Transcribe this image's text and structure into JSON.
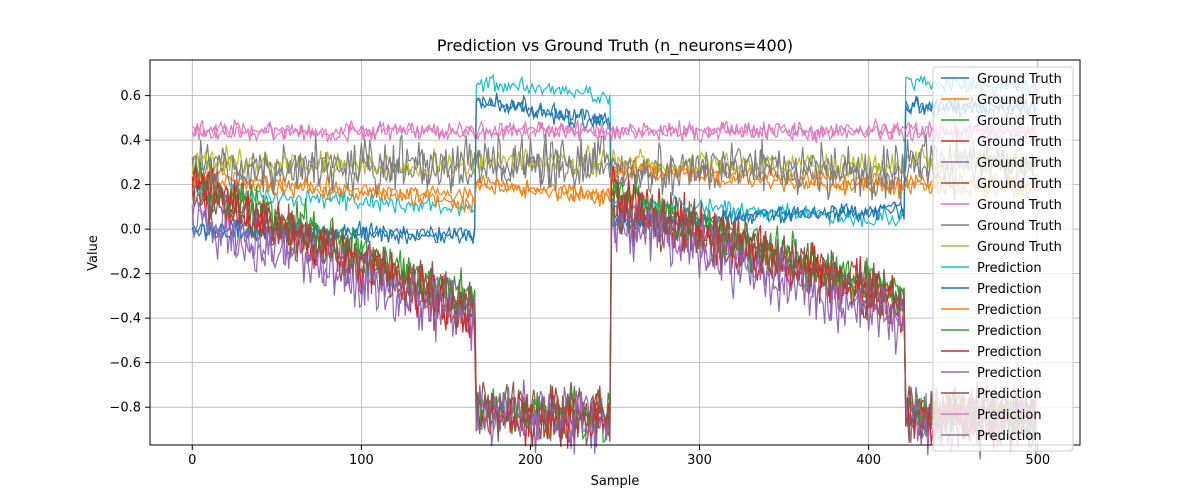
{
  "chart_data": {
    "type": "line",
    "title": "Prediction vs Ground Truth (n_neurons=400)",
    "xlabel": "Sample",
    "ylabel": "Value",
    "xlim": [
      -25,
      525
    ],
    "ylim": [
      -0.97,
      0.76
    ],
    "xticks": [
      0,
      100,
      200,
      300,
      400,
      500
    ],
    "yticks": [
      -0.8,
      -0.6,
      -0.4,
      -0.2,
      0.0,
      0.2,
      0.4,
      0.6
    ],
    "ytick_labels": [
      "−0.8",
      "−0.6",
      "−0.4",
      "−0.2",
      "0.0",
      "0.2",
      "0.4",
      "0.6"
    ],
    "grid": true,
    "legend_position": "upper right",
    "n_points": 500,
    "segments": {
      "boundaries": [
        0,
        168,
        248,
        422,
        500
      ],
      "description": "sample ranges where signal levels change"
    },
    "series": [
      {
        "name": "Ground Truth",
        "color": "#1f77b4",
        "levels": [
          0.0,
          0.58,
          0.03,
          0.55
        ],
        "trend": [
          -0.03,
          -0.1,
          0.06,
          0.0
        ],
        "noise": 0.02
      },
      {
        "name": "Ground Truth",
        "color": "#ff7f0e",
        "levels": [
          0.24,
          0.2,
          0.28,
          0.22
        ],
        "trend": [
          -0.1,
          -0.05,
          -0.08,
          -0.02
        ],
        "noise": 0.02
      },
      {
        "name": "Ground Truth",
        "color": "#2ca02c",
        "levels": [
          0.22,
          -0.82,
          0.15,
          -0.83
        ],
        "trend": [
          -0.55,
          -0.03,
          -0.45,
          -0.02
        ],
        "noise": 0.05
      },
      {
        "name": "Ground Truth",
        "color": "#d62728",
        "levels": [
          0.2,
          -0.82,
          0.15,
          -0.84
        ],
        "trend": [
          -0.6,
          -0.03,
          -0.5,
          -0.02
        ],
        "noise": 0.06
      },
      {
        "name": "Ground Truth",
        "color": "#9467bd",
        "levels": [
          0.05,
          -0.83,
          0.05,
          -0.85
        ],
        "trend": [
          -0.45,
          -0.03,
          -0.45,
          -0.02
        ],
        "noise": 0.07
      },
      {
        "name": "Ground Truth",
        "color": "#8c564b",
        "levels": [
          0.18,
          -0.81,
          0.12,
          -0.82
        ],
        "trend": [
          -0.55,
          -0.04,
          -0.45,
          -0.02
        ],
        "noise": 0.06
      },
      {
        "name": "Ground Truth",
        "color": "#e377c2",
        "levels": [
          0.44,
          0.44,
          0.44,
          0.44
        ],
        "trend": [
          0,
          0,
          0,
          0
        ],
        "noise": 0.02
      },
      {
        "name": "Ground Truth",
        "color": "#7f7f7f",
        "levels": [
          0.28,
          0.28,
          0.27,
          0.28
        ],
        "trend": [
          0,
          0,
          0,
          0
        ],
        "noise": 0.04
      },
      {
        "name": "Ground Truth",
        "color": "#bcbd22",
        "levels": [
          0.3,
          0.3,
          0.3,
          0.3
        ],
        "trend": [
          -0.02,
          0,
          -0.02,
          0
        ],
        "noise": 0.03
      },
      {
        "name": "Prediction",
        "color": "#17becf",
        "levels": [
          0.17,
          0.66,
          0.12,
          0.66
        ],
        "trend": [
          -0.08,
          -0.06,
          -0.08,
          -0.02
        ],
        "noise": 0.02
      },
      {
        "name": "Prediction",
        "color": "#1f77b4",
        "levels": [
          0.0,
          0.58,
          0.03,
          0.55
        ],
        "trend": [
          -0.03,
          -0.1,
          0.06,
          0.0
        ],
        "noise": 0.02
      },
      {
        "name": "Prediction",
        "color": "#ff7f0e",
        "levels": [
          0.22,
          0.2,
          0.26,
          0.2
        ],
        "trend": [
          -0.1,
          -0.05,
          -0.08,
          -0.02
        ],
        "noise": 0.02
      },
      {
        "name": "Prediction",
        "color": "#2ca02c",
        "levels": [
          0.22,
          -0.82,
          0.15,
          -0.83
        ],
        "trend": [
          -0.55,
          -0.03,
          -0.45,
          -0.02
        ],
        "noise": 0.05
      },
      {
        "name": "Prediction",
        "color": "#d62728",
        "levels": [
          0.2,
          -0.82,
          0.15,
          -0.84
        ],
        "trend": [
          -0.6,
          -0.03,
          -0.5,
          -0.02
        ],
        "noise": 0.06
      },
      {
        "name": "Prediction",
        "color": "#9467bd",
        "levels": [
          0.05,
          -0.83,
          0.05,
          -0.85
        ],
        "trend": [
          -0.45,
          -0.03,
          -0.45,
          -0.02
        ],
        "noise": 0.07
      },
      {
        "name": "Prediction",
        "color": "#8c564b",
        "levels": [
          0.18,
          -0.81,
          0.12,
          -0.82
        ],
        "trend": [
          -0.55,
          -0.04,
          -0.45,
          -0.02
        ],
        "noise": 0.06
      },
      {
        "name": "Prediction",
        "color": "#e377c2",
        "levels": [
          0.44,
          0.44,
          0.44,
          0.44
        ],
        "trend": [
          0,
          0,
          0,
          0
        ],
        "noise": 0.02
      },
      {
        "name": "Prediction",
        "color": "#7f7f7f",
        "levels": [
          0.28,
          0.3,
          0.27,
          0.3
        ],
        "trend": [
          0,
          0,
          0,
          0
        ],
        "noise": 0.06
      }
    ]
  }
}
